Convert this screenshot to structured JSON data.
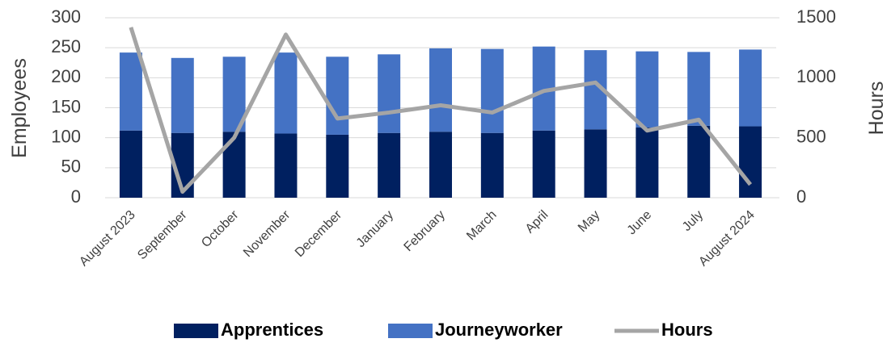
{
  "chart_data": {
    "type": "bar",
    "stacked": true,
    "categories": [
      "August 2023",
      "September",
      "October",
      "November",
      "December",
      "January",
      "February",
      "March",
      "April",
      "May",
      "June",
      "July",
      "August 2024"
    ],
    "series": [
      {
        "name": "Apprentices",
        "color": "#002060",
        "values": [
          112,
          108,
          110,
          107,
          105,
          108,
          110,
          108,
          112,
          114,
          117,
          120,
          119
        ]
      },
      {
        "name": "Journeyworker",
        "color": "#4472c4",
        "values": [
          130,
          125,
          125,
          135,
          130,
          131,
          139,
          140,
          140,
          132,
          127,
          123,
          128
        ]
      },
      {
        "name": "Hours",
        "type": "line",
        "axis": "y2",
        "color": "#a5a5a5",
        "values": [
          1420,
          50,
          500,
          1360,
          660,
          710,
          770,
          710,
          890,
          960,
          560,
          650,
          110
        ]
      }
    ],
    "y_label": "Employees",
    "y2_label": "Hours",
    "ylim": [
      0,
      300
    ],
    "yticks": [
      0,
      50,
      100,
      150,
      200,
      250,
      300
    ],
    "y2lim": [
      0,
      1500
    ],
    "y2ticks": [
      0,
      500,
      1000,
      1500
    ],
    "grid": true,
    "legend": "bottom"
  }
}
